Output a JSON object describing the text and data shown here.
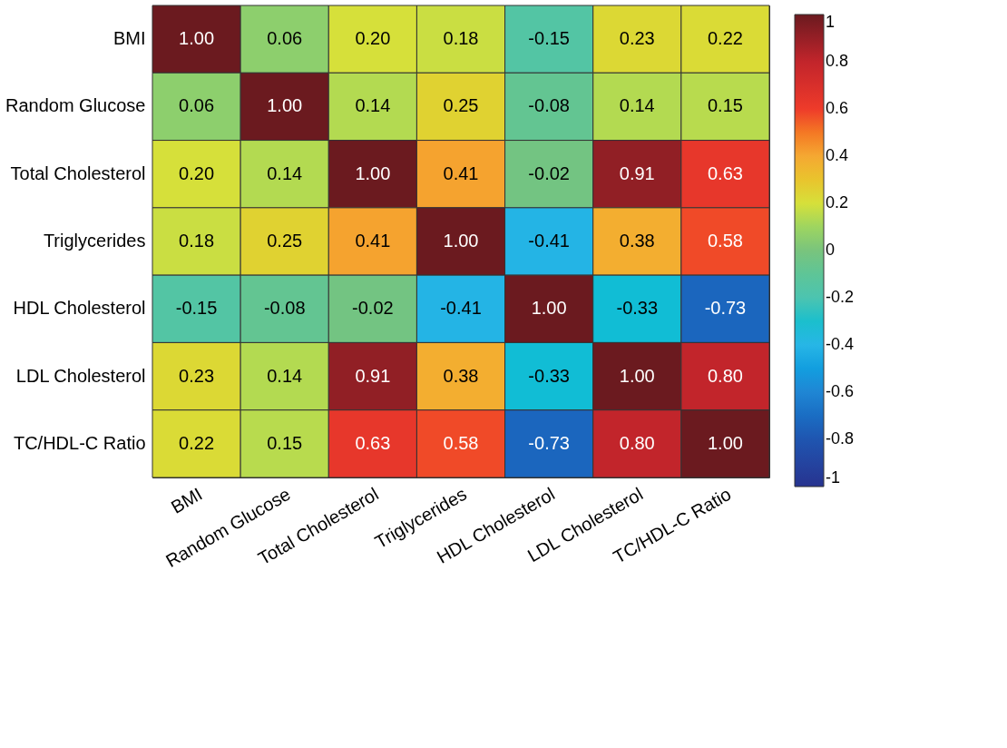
{
  "chart_data": {
    "type": "heatmap",
    "categories": [
      "BMI",
      "Random Glucose",
      "Total Cholesterol",
      "Triglycerides",
      "HDL Cholesterol",
      "LDL Cholesterol",
      "TC/HDL-C Ratio"
    ],
    "y_categories": [
      "BMI",
      "Random Glucose",
      "Total Cholesterol",
      "Triglycerides",
      "HDL Cholesterol",
      "LDL Cholesterol",
      "TC/HDL-C Ratio"
    ],
    "cells": [
      [
        1.0,
        0.06,
        0.2,
        0.18,
        -0.15,
        0.23,
        0.22
      ],
      [
        0.06,
        1.0,
        0.14,
        0.25,
        -0.08,
        0.14,
        0.15
      ],
      [
        0.2,
        0.14,
        1.0,
        0.41,
        -0.02,
        0.91,
        0.63
      ],
      [
        0.18,
        0.25,
        0.41,
        1.0,
        -0.41,
        0.38,
        0.58
      ],
      [
        -0.15,
        -0.08,
        -0.02,
        -0.41,
        1.0,
        -0.33,
        -0.73
      ],
      [
        0.23,
        0.14,
        0.91,
        0.38,
        -0.33,
        1.0,
        0.8
      ],
      [
        0.22,
        0.15,
        0.63,
        0.58,
        -0.73,
        0.8,
        1.0
      ]
    ],
    "clim": [
      -1,
      1
    ],
    "cticks": [
      -1,
      -0.8,
      -0.6,
      -0.4,
      -0.2,
      0,
      0.2,
      0.4,
      0.6,
      0.8,
      1
    ],
    "cell_labels": [
      [
        "1.00",
        "0.06",
        "0.20",
        "0.18",
        "-0.15",
        "0.23",
        "0.22"
      ],
      [
        "0.06",
        "1.00",
        "0.14",
        "0.25",
        "-0.08",
        "0.14",
        "0.15"
      ],
      [
        "0.20",
        "0.14",
        "1.00",
        "0.41",
        "-0.02",
        "0.91",
        "0.63"
      ],
      [
        "0.18",
        "0.25",
        "0.41",
        "1.00",
        "-0.41",
        "0.38",
        "0.58"
      ],
      [
        "-0.15",
        "-0.08",
        "-0.02",
        "-0.41",
        "1.00",
        "-0.33",
        "-0.73"
      ],
      [
        "0.23",
        "0.14",
        "0.91",
        "0.38",
        "-0.33",
        "1.00",
        "0.80"
      ],
      [
        "0.22",
        "0.15",
        "0.63",
        "0.58",
        "-0.73",
        "0.80",
        "1.00"
      ]
    ]
  }
}
